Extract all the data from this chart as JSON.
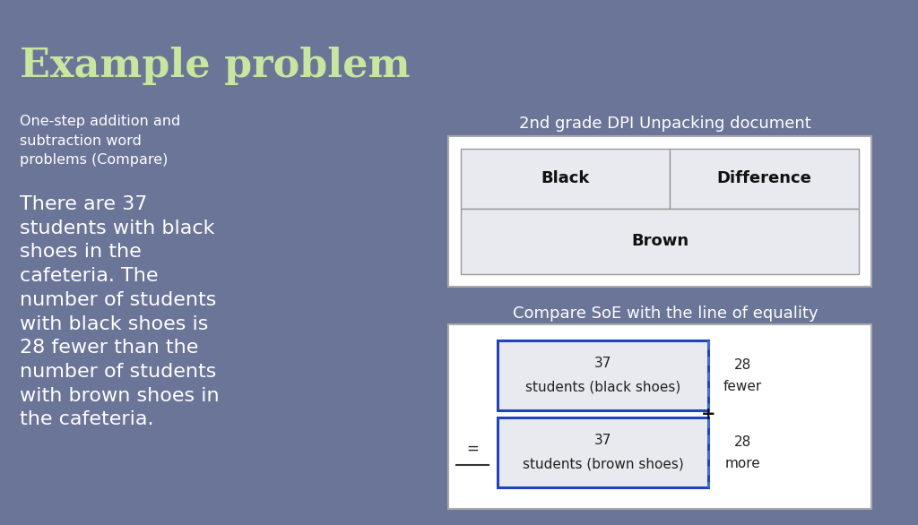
{
  "bg_color": "#6b7598",
  "title": "Example problem",
  "title_color": "#c8e6a0",
  "title_fontsize": 32,
  "subtitle": "One-step addition and\nsubtraction word\nproblems (Compare)",
  "subtitle_color": "#ffffff",
  "subtitle_fontsize": 11.5,
  "story_text": "There are 37\nstudents with black\nshoes in the\ncafeteria. The\nnumber of students\nwith black shoes is\n28 fewer than the\nnumber of students\nwith brown shoes in\nthe cafeteria.",
  "story_color": "#ffffff",
  "story_fontsize": 16,
  "dpi_title": "2nd grade DPI Unpacking document",
  "dpi_title_color": "#ffffff",
  "dpi_title_fontsize": 13,
  "compare_title": "Compare SoE with the line of equality",
  "compare_title_color": "#ffffff",
  "compare_title_fontsize": 13,
  "box_bg": "#e8eaf0",
  "box_border": "#999999",
  "outer_bg": "white",
  "dpi_cell1": "Black",
  "dpi_cell2": "Difference",
  "dpi_cell3": "Brown",
  "compare_box1_line1": "37",
  "compare_box1_line2": "students (black shoes)",
  "compare_box2_line1": "37",
  "compare_box2_line2": "students (brown shoes)",
  "compare_right1_line1": "28",
  "compare_right1_line2": "fewer",
  "compare_right2_line1": "28",
  "compare_right2_line2": "more",
  "compare_eq_label": "=",
  "blue_border": "#2244bb",
  "dashed_line_color": "#4477cc"
}
